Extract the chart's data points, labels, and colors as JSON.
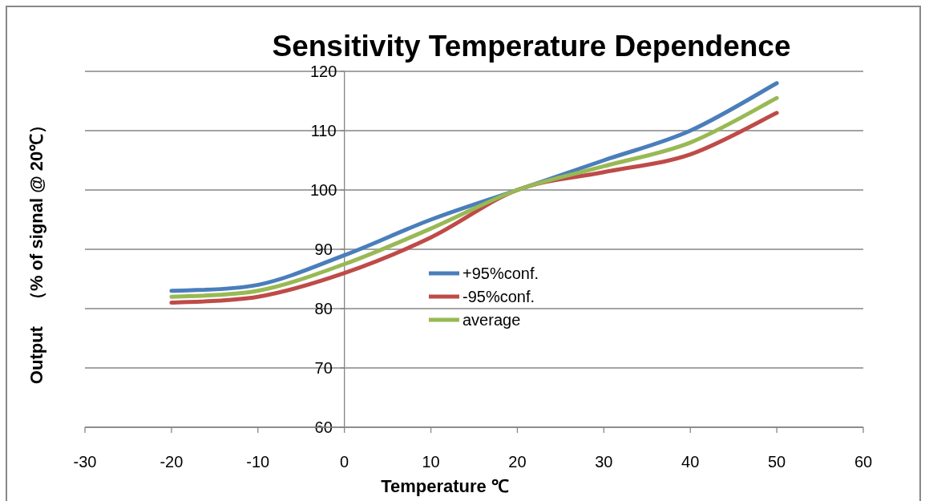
{
  "chart_data": {
    "type": "line",
    "title": "Sensitivity Temperature Dependence",
    "xlabel": "Temperature ℃",
    "ylabel": "Output　（% of signal  @ 20℃）",
    "x": [
      -20,
      -10,
      0,
      10,
      20,
      30,
      40,
      50
    ],
    "series": [
      {
        "name": "+95%conf.",
        "color": "#4a7ebb",
        "values": [
          83,
          84,
          89,
          95,
          100,
          105,
          110,
          118
        ]
      },
      {
        "name": "-95%conf.",
        "color": "#be4b48",
        "values": [
          81,
          82,
          86,
          92,
          100,
          103,
          106,
          113
        ]
      },
      {
        "name": "average",
        "color": "#98b954",
        "values": [
          82,
          83,
          87.5,
          93.5,
          100,
          104,
          108,
          115.5
        ]
      }
    ],
    "xlim": [
      -30,
      60
    ],
    "xticks": [
      -30,
      -20,
      -10,
      0,
      10,
      20,
      30,
      40,
      50,
      60
    ],
    "ylim": [
      60,
      120
    ],
    "yticks": [
      60,
      70,
      80,
      90,
      100,
      110,
      120
    ],
    "grid": "y",
    "legend": "center",
    "marker": "none",
    "line_style": "solid"
  }
}
